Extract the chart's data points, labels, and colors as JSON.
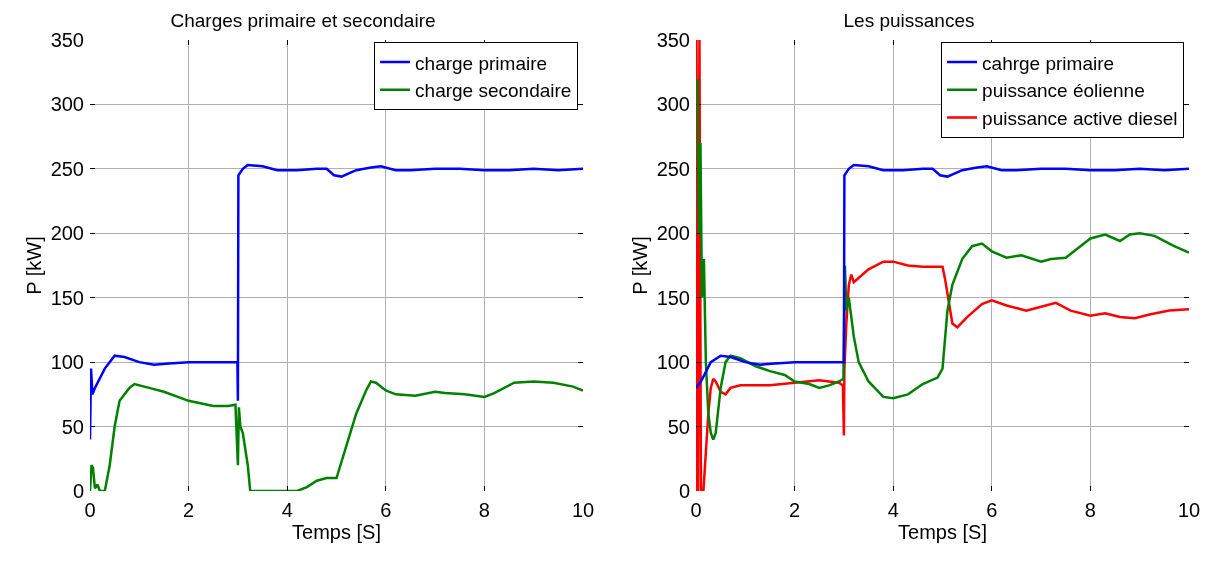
{
  "chart_data": [
    {
      "type": "line",
      "title": "Charges primaire et secondaire",
      "xlabel": "Temps [S]",
      "ylabel": "P [kW]",
      "xlim": [
        0,
        10
      ],
      "xticks": [
        0,
        2,
        4,
        6,
        8,
        10
      ],
      "ylim": [
        0,
        350
      ],
      "yticks": [
        0,
        50,
        100,
        150,
        200,
        250,
        300,
        350
      ],
      "grid": true,
      "legend": "top right",
      "marker": "none",
      "line_style": "solid",
      "series": [
        {
          "name": "charge primaire",
          "color": "#0000ff",
          "x": [
            0,
            0.02,
            0.05,
            0.1,
            0.3,
            0.5,
            0.7,
            1.0,
            1.3,
            1.6,
            2,
            2.5,
            2.99,
            3.0,
            3.01,
            3.1,
            3.2,
            3.5,
            3.8,
            4.2,
            4.6,
            4.8,
            4.95,
            5.1,
            5.4,
            5.7,
            5.9,
            6.2,
            6.5,
            7,
            7.5,
            8,
            8.5,
            9,
            9.5,
            10
          ],
          "values": [
            40,
            95,
            75,
            80,
            95,
            105,
            104,
            100,
            98,
            99,
            100,
            100,
            100,
            70,
            245,
            250,
            253,
            252,
            249,
            249,
            250,
            250,
            245,
            244,
            249,
            251,
            252,
            249,
            249,
            250,
            250,
            249,
            249,
            250,
            249,
            250
          ]
        },
        {
          "name": "charge secondaire",
          "color": "#008000",
          "x": [
            0,
            0.03,
            0.06,
            0.1,
            0.15,
            0.2,
            0.3,
            0.4,
            0.5,
            0.6,
            0.8,
            0.9,
            1.2,
            1.5,
            2,
            2.5,
            2.8,
            2.95,
            3.0,
            3.02,
            3.05,
            3.1,
            3.2,
            3.25,
            4,
            4.2,
            4.4,
            4.6,
            4.8,
            5.0,
            5.2,
            5.4,
            5.6,
            5.7,
            5.8,
            6.0,
            6.2,
            6.6,
            7,
            7.2,
            7.6,
            8,
            8.2,
            8.6,
            9,
            9.4,
            9.8,
            10
          ],
          "values": [
            0,
            20,
            18,
            2,
            5,
            0,
            0,
            20,
            50,
            70,
            80,
            83,
            80,
            77,
            70,
            66,
            66,
            67,
            20,
            65,
            50,
            45,
            20,
            0,
            0,
            0,
            3,
            8,
            10,
            10,
            35,
            60,
            78,
            85,
            84,
            78,
            75,
            74,
            77,
            76,
            75,
            73,
            76,
            84,
            85,
            84,
            81,
            78
          ]
        }
      ]
    },
    {
      "type": "line",
      "title": "Les puissances",
      "xlabel": "Temps [S]",
      "ylabel": "P [kW]",
      "xlim": [
        0,
        10
      ],
      "xticks": [
        0,
        2,
        4,
        6,
        8,
        10
      ],
      "ylim": [
        0,
        350
      ],
      "yticks": [
        0,
        50,
        100,
        150,
        200,
        250,
        300,
        350
      ],
      "grid": true,
      "legend": "top right",
      "marker": "none",
      "line_style": "solid",
      "series": [
        {
          "name": "cahrge primaire",
          "color": "#0000ff",
          "x": [
            0,
            0.1,
            0.3,
            0.5,
            0.7,
            1.0,
            1.3,
            1.6,
            2,
            2.5,
            2.99,
            3.0,
            3.01,
            3.1,
            3.2,
            3.5,
            3.8,
            4.2,
            4.6,
            4.8,
            4.95,
            5.1,
            5.4,
            5.7,
            5.9,
            6.2,
            6.5,
            7,
            7.5,
            8,
            8.5,
            9,
            9.5,
            10
          ],
          "values": [
            80,
            85,
            100,
            105,
            104,
            100,
            98,
            99,
            100,
            100,
            100,
            100,
            245,
            250,
            253,
            252,
            249,
            249,
            250,
            250,
            245,
            244,
            249,
            251,
            252,
            249,
            249,
            250,
            250,
            249,
            249,
            250,
            249,
            250
          ]
        },
        {
          "name": "puissance éolienne",
          "color": "#008000",
          "x": [
            0.03,
            0.06,
            0.09,
            0.12,
            0.16,
            0.2,
            0.25,
            0.3,
            0.35,
            0.4,
            0.5,
            0.6,
            0.7,
            0.9,
            1.2,
            1.5,
            1.8,
            2,
            2.3,
            2.5,
            2.7,
            2.9,
            2.99,
            3.02,
            3.05,
            3.1,
            3.2,
            3.3,
            3.5,
            3.8,
            4,
            4.3,
            4.6,
            4.9,
            5.0,
            5.1,
            5.2,
            5.4,
            5.6,
            5.8,
            6.0,
            6.3,
            6.6,
            7,
            7.2,
            7.5,
            8,
            8.3,
            8.6,
            8.8,
            9,
            9.3,
            9.7,
            10
          ],
          "values": [
            320,
            200,
            270,
            150,
            180,
            100,
            60,
            45,
            40,
            45,
            80,
            100,
            105,
            103,
            97,
            93,
            90,
            85,
            83,
            80,
            82,
            85,
            87,
            175,
            140,
            150,
            120,
            100,
            85,
            73,
            72,
            75,
            83,
            88,
            95,
            140,
            160,
            180,
            190,
            192,
            186,
            181,
            183,
            178,
            180,
            181,
            196,
            199,
            194,
            199,
            200,
            198,
            190,
            185
          ]
        },
        {
          "name": "puissance active diesel",
          "color": "#ff0000",
          "x": [
            0,
            0.01,
            0.04,
            0.07,
            0.1,
            0.15,
            0.2,
            0.25,
            0.3,
            0.35,
            0.4,
            0.5,
            0.6,
            0.7,
            0.9,
            1.2,
            1.5,
            2,
            2.5,
            2.9,
            2.98,
            3.0,
            3.01,
            3.05,
            3.1,
            3.15,
            3.2,
            3.5,
            3.8,
            4.0,
            4.3,
            4.6,
            5.0,
            5.05,
            5.2,
            5.3,
            5.5,
            5.8,
            6.0,
            6.3,
            6.7,
            7,
            7.3,
            7.6,
            8,
            8.3,
            8.6,
            8.9,
            9.2,
            9.6,
            10
          ],
          "values": [
            0,
            350,
            0,
            350,
            0,
            0,
            30,
            60,
            80,
            87,
            85,
            77,
            75,
            80,
            82,
            82,
            82,
            84,
            86,
            84,
            82,
            43,
            95,
            130,
            160,
            168,
            162,
            172,
            178,
            178,
            175,
            174,
            174,
            165,
            130,
            127,
            135,
            145,
            148,
            144,
            140,
            143,
            146,
            140,
            136,
            138,
            135,
            134,
            137,
            140,
            141
          ]
        }
      ]
    }
  ]
}
